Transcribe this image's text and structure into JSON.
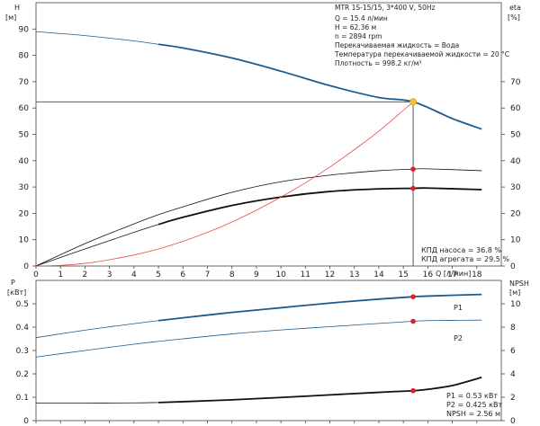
{
  "chart_data": [
    {
      "type": "line",
      "panel": "head-efficiency",
      "title": "MTR 1S-15/15, 3*400 V, 50Hz",
      "xlabel": "Q [л/мин]",
      "xlim": [
        0,
        19
      ],
      "x_ticks": [
        0,
        1,
        2,
        3,
        4,
        5,
        6,
        7,
        8,
        9,
        10,
        11,
        12,
        13,
        14,
        15,
        16,
        17,
        18
      ],
      "y_left": {
        "label": "H",
        "unit": "[м]",
        "ylim": [
          0,
          100
        ],
        "ticks": [
          0,
          10,
          20,
          30,
          40,
          50,
          60,
          70,
          80,
          90
        ]
      },
      "y_right": {
        "label": "eta",
        "unit": "[%]",
        "ylim": [
          0,
          100
        ],
        "ticks": [
          0,
          10,
          20,
          30,
          40,
          50,
          60,
          70
        ]
      },
      "info_lines": [
        "Q = 15.4 л/мин",
        "H = 62.36 м",
        "n = 2894 rpm",
        "Перекачиваемая жидкость = Вода",
        "Температура перекачиваемой жидкости = 20 °C",
        "Плотность = 998.2 кг/м³"
      ],
      "readouts": [
        "КПД насоса = 36.8 %",
        "КПД агрегата = 29.5 %"
      ],
      "grid": false,
      "duty_point": {
        "q": 15.4,
        "h": 62.36
      },
      "series": [
        {
          "axis": "left",
          "color": "#1f5a8a",
          "style": "thin-then-thick",
          "thick_from": 5,
          "x": [
            0,
            2,
            4,
            5,
            6,
            8,
            10,
            12,
            14,
            15.4,
            17,
            18.2
          ],
          "values": [
            89,
            87.5,
            85.5,
            84.2,
            82.8,
            79,
            74,
            68.5,
            64,
            62.36,
            56,
            52
          ]
        },
        {
          "axis": "right",
          "color": "#111111",
          "style": "thin",
          "x": [
            0,
            2,
            4,
            5,
            6,
            8,
            10,
            12,
            14,
            15.4,
            16,
            18.2
          ],
          "values": [
            0,
            8.5,
            16,
            19.5,
            22.5,
            28,
            32,
            34.5,
            36.2,
            36.8,
            36.9,
            36.2
          ],
          "marker_at": 15.4
        },
        {
          "axis": "right",
          "color": "#111111",
          "style": "thin-then-thick",
          "thick_from": 5,
          "x": [
            0,
            2,
            4,
            5,
            6,
            8,
            10,
            12,
            14,
            15.4,
            16,
            18.2
          ],
          "values": [
            0,
            6.5,
            12.8,
            15.8,
            18.5,
            23,
            26.2,
            28.3,
            29.3,
            29.5,
            29.6,
            29
          ],
          "marker_at": 15.4
        },
        {
          "axis": "left",
          "color": "#e84a4a",
          "style": "thin",
          "name": "system",
          "x": [
            0,
            1,
            2,
            3,
            4,
            5,
            6,
            7,
            8,
            9,
            10,
            11,
            12,
            13,
            14,
            15.4
          ],
          "values": [
            0,
            0.25,
            1,
            2.4,
            4.2,
            6.5,
            9.4,
            12.8,
            16.7,
            21.2,
            26.2,
            31.6,
            37.6,
            44.2,
            51.2,
            62.36
          ]
        }
      ]
    },
    {
      "type": "line",
      "panel": "power-npsh",
      "xlabel": "",
      "xlim": [
        0,
        19
      ],
      "y_left": {
        "label": "P",
        "unit": "[кВт]",
        "ylim": [
          0,
          0.6
        ],
        "ticks": [
          0,
          0.1,
          0.2,
          0.3,
          0.4,
          0.5
        ]
      },
      "y_right": {
        "label": "NPSH",
        "unit": "[м]",
        "ylim": [
          0,
          12
        ],
        "ticks": [
          0,
          2,
          4,
          6,
          8,
          10
        ]
      },
      "readouts": [
        "P1 = 0.53 кВт",
        "P2 = 0.425 кВт",
        "NPSH = 2.56 м"
      ],
      "grid": false,
      "series": [
        {
          "name": "P1",
          "axis": "left",
          "color": "#1f5a8a",
          "style": "thin-then-thick",
          "thick_from": 5,
          "x": [
            0,
            2,
            4,
            5,
            6,
            8,
            10,
            12,
            14,
            15.4,
            16,
            18.2
          ],
          "values": [
            0.355,
            0.387,
            0.415,
            0.428,
            0.44,
            0.463,
            0.483,
            0.503,
            0.52,
            0.53,
            0.533,
            0.54
          ],
          "marker_at": 15.4
        },
        {
          "name": "P2",
          "axis": "left",
          "color": "#1f5a8a",
          "style": "thin",
          "x": [
            0,
            2,
            4,
            5,
            6,
            8,
            10,
            12,
            14,
            15.4,
            16,
            18.2
          ],
          "values": [
            0.272,
            0.3,
            0.327,
            0.339,
            0.35,
            0.371,
            0.388,
            0.402,
            0.416,
            0.425,
            0.428,
            0.43
          ],
          "marker_at": 15.4
        },
        {
          "name": "NPSH",
          "axis": "right",
          "color": "#111111",
          "style": "thin-then-thick",
          "thick_from": 5,
          "x": [
            0,
            2,
            4,
            5,
            6,
            8,
            10,
            12,
            14,
            15.4,
            16,
            17,
            18.2
          ],
          "values": [
            1.5,
            1.5,
            1.52,
            1.55,
            1.62,
            1.78,
            1.98,
            2.2,
            2.42,
            2.56,
            2.68,
            3,
            3.7
          ],
          "marker_at": 15.4
        }
      ]
    }
  ],
  "colors": {
    "head": "#1f5a8a",
    "system": "#e84a4a",
    "marker": "#e02020",
    "duty": "#f2c230",
    "axis": "#444444"
  }
}
